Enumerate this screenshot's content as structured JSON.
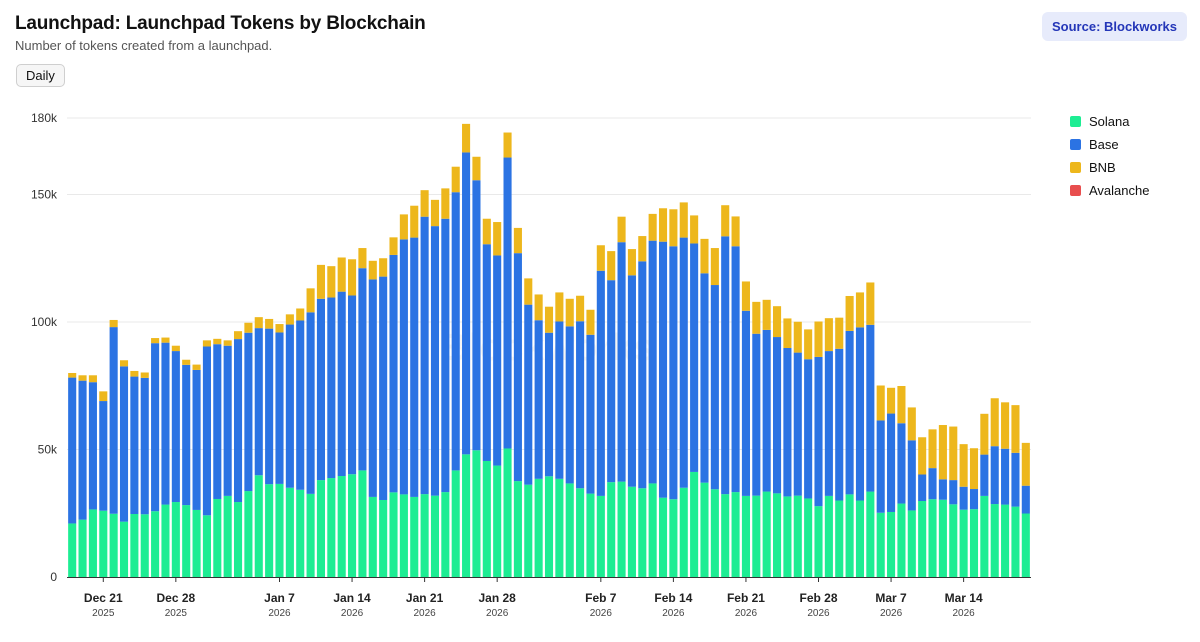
{
  "header": {
    "title": "Launchpad: Launchpad Tokens by Blockchain",
    "subtitle": "Number of tokens created from a launchpad.",
    "source_label": "Source: Blockworks",
    "period_label": "Daily"
  },
  "watermark": "Blockworks",
  "colors": {
    "solana": "#1ded93",
    "base": "#2b73e3",
    "bnb": "#edb71c",
    "avalanche": "#e84e4e",
    "grid": "#e9e9e9",
    "axis": "#333333"
  },
  "legend": [
    {
      "label": "Solana",
      "color": "#1ded93"
    },
    {
      "label": "Base",
      "color": "#2b73e3"
    },
    {
      "label": "BNB",
      "color": "#edb71c"
    },
    {
      "label": "Avalanche",
      "color": "#e84e4e"
    }
  ],
  "chart_data": {
    "type": "bar",
    "stacked": true,
    "title": "Launchpad: Launchpad Tokens by Blockchain",
    "subtitle": "Number of tokens created from a launchpad.",
    "xlabel": "",
    "ylabel": "",
    "ylim": [
      0,
      180000
    ],
    "yticks": [
      {
        "value": 0,
        "label": "0"
      },
      {
        "value": 50000,
        "label": "50k"
      },
      {
        "value": 100000,
        "label": "100k"
      },
      {
        "value": 150000,
        "label": "150k"
      },
      {
        "value": 180000,
        "label": "180k"
      }
    ],
    "xticks": [
      {
        "index": 3,
        "label": "Dec 21",
        "sub": "2025"
      },
      {
        "index": 10,
        "label": "Dec 28",
        "sub": "2025"
      },
      {
        "index": 20,
        "label": "Jan 7",
        "sub": "2026"
      },
      {
        "index": 27,
        "label": "Jan 14",
        "sub": "2026"
      },
      {
        "index": 34,
        "label": "Jan 21",
        "sub": "2026"
      },
      {
        "index": 41,
        "label": "Jan 28",
        "sub": "2026"
      },
      {
        "index": 51,
        "label": "Feb 7",
        "sub": "2026"
      },
      {
        "index": 58,
        "label": "Feb 14",
        "sub": "2026"
      },
      {
        "index": 65,
        "label": "Feb 21",
        "sub": "2026"
      },
      {
        "index": 72,
        "label": "Feb 28",
        "sub": "2026"
      },
      {
        "index": 79,
        "label": "Mar 7",
        "sub": "2026"
      },
      {
        "index": 86,
        "label": "Mar 14",
        "sub": "2026"
      }
    ],
    "series": [
      {
        "name": "Solana",
        "color": "#1ded93",
        "values": [
          21000,
          22500,
          26500,
          26000,
          24800,
          21700,
          24700,
          24600,
          25800,
          28400,
          29400,
          28200,
          26300,
          24200,
          30600,
          31800,
          29400,
          33700,
          39900,
          36400,
          36500,
          35000,
          34200,
          32600,
          38000,
          38800,
          39600,
          40300,
          41800,
          31400,
          30200,
          33200,
          32400,
          31400,
          32500,
          31900,
          33300,
          41800,
          48100,
          49700,
          45500,
          43700,
          50400,
          37600,
          36200,
          38500,
          39500,
          38500,
          36700,
          34800,
          32700,
          31800,
          37200,
          37400,
          35400,
          34800,
          36700,
          31100,
          30500,
          35000,
          41200,
          37000,
          34400,
          32500,
          33300,
          31800,
          31900,
          33500,
          32800,
          31600,
          31900,
          30800,
          27800,
          31800,
          30000,
          32400,
          30000,
          33500,
          25200,
          25500,
          28800,
          26100,
          29800,
          30500,
          30300,
          28500,
          26400,
          26600,
          31800,
          28600,
          28400,
          27600,
          24900
        ],
        "cumulative_totals": [
          78200,
          77000,
          76400,
          69000,
          98000,
          82600,
          78600,
          78100,
          91700,
          91900,
          88600,
          83200,
          81200,
          90400,
          91300,
          90700,
          93300,
          95800,
          97600,
          97400,
          95900,
          99000,
          100600,
          103800,
          109100,
          109600,
          111900,
          110400,
          121100,
          116700,
          117800,
          126300,
          132400,
          133100,
          141300,
          137600,
          140500,
          150900,
          166500,
          155600,
          130500,
          126100,
          164500,
          127000,
          106800,
          100700,
          95800,
          100200,
          98300,
          100300,
          95000,
          120100,
          116400,
          131300,
          118300,
          123800,
          131900,
          131500,
          129700,
          133100,
          130800,
          119100,
          114500,
          133600,
          129700,
          104400,
          95400,
          96900,
          94100,
          89800,
          88000,
          85400,
          86300,
          88600,
          89500,
          96500,
          97900,
          98900,
          61400,
          64100,
          60300,
          53600,
          40200,
          37700,
          36800,
          38000,
          35400,
          34500,
          48000,
          51300,
          50300,
          48700,
          35800
        ],
        "label_note": "values listed are Solana; Base/BNB given below"
      },
      {
        "name": "Base",
        "color": "#2b73e3",
        "values": [
          57200,
          54500,
          49900,
          43000,
          73200,
          60900,
          53900,
          53500,
          65900,
          63500,
          59200,
          55000,
          54900,
          66200,
          60700,
          58900,
          63900,
          62100,
          57700,
          61000,
          59400,
          64000,
          66400,
          71200,
          71100,
          70800,
          72300,
          70100,
          79300,
          85300,
          87600,
          93100,
          100000,
          101700,
          108800,
          105700,
          107200,
          109100,
          118400,
          105900,
          85000,
          82400,
          114100,
          89400,
          70600,
          62200,
          56300,
          61700,
          61600,
          65500,
          62300,
          88300,
          79200,
          93900,
          82900,
          89000,
          95200,
          100400,
          99200,
          98100,
          89600,
          82100,
          80100,
          101100,
          96400,
          72600,
          63500,
          63400,
          61300,
          58200,
          56100,
          54600,
          58500,
          56800,
          59500,
          64100,
          67900,
          65400,
          36200,
          38600,
          31500,
          27500,
          10400,
          12200,
          8000,
          9500,
          9000,
          7900,
          16200,
          22700,
          21900,
          21100,
          10900
        ]
      },
      {
        "name": "BNB",
        "color": "#edb71c",
        "values": [
          1800,
          2100,
          2700,
          3800,
          2800,
          2400,
          2200,
          2100,
          2000,
          2000,
          2100,
          2000,
          2100,
          2400,
          2100,
          2100,
          3100,
          3900,
          4300,
          3800,
          3300,
          4000,
          4700,
          9400,
          13300,
          12300,
          13400,
          14200,
          7900,
          7300,
          7200,
          6900,
          9800,
          12500,
          10400,
          10300,
          11900,
          10000,
          11200,
          9200,
          10000,
          13100,
          9800,
          9900,
          10300,
          10100,
          10200,
          11400,
          10800,
          10000,
          9800,
          10000,
          11400,
          10000,
          10300,
          9900,
          10500,
          13100,
          14500,
          13800,
          11000,
          13500,
          14500,
          12200,
          11700,
          11500,
          12500,
          11800,
          12100,
          11600,
          12100,
          11700,
          13900,
          12900,
          12200,
          13700,
          13700,
          16600,
          13700,
          10100,
          14600,
          12900,
          14600,
          15200,
          21300,
          21000,
          16700,
          16000,
          16000,
          18800,
          18200,
          18700,
          16800
        ]
      },
      {
        "name": "Avalanche",
        "color": "#e84e4e",
        "values": [
          0,
          0,
          0,
          0,
          0,
          0,
          0,
          0,
          0,
          0,
          0,
          0,
          0,
          0,
          0,
          0,
          0,
          0,
          0,
          0,
          0,
          0,
          0,
          0,
          0,
          0,
          0,
          0,
          0,
          0,
          0,
          0,
          0,
          0,
          0,
          0,
          0,
          0,
          0,
          0,
          0,
          0,
          0,
          0,
          0,
          0,
          0,
          0,
          0,
          0,
          0,
          0,
          0,
          0,
          0,
          0,
          0,
          0,
          0,
          0,
          0,
          0,
          0,
          0,
          0,
          0,
          0,
          0,
          0,
          0,
          0,
          0,
          0,
          0,
          0,
          0,
          0,
          0,
          0,
          0,
          0,
          0,
          0,
          0,
          0,
          0,
          0,
          0,
          0,
          0,
          0,
          0,
          0
        ]
      }
    ],
    "legend_position": "right",
    "grid": true
  }
}
